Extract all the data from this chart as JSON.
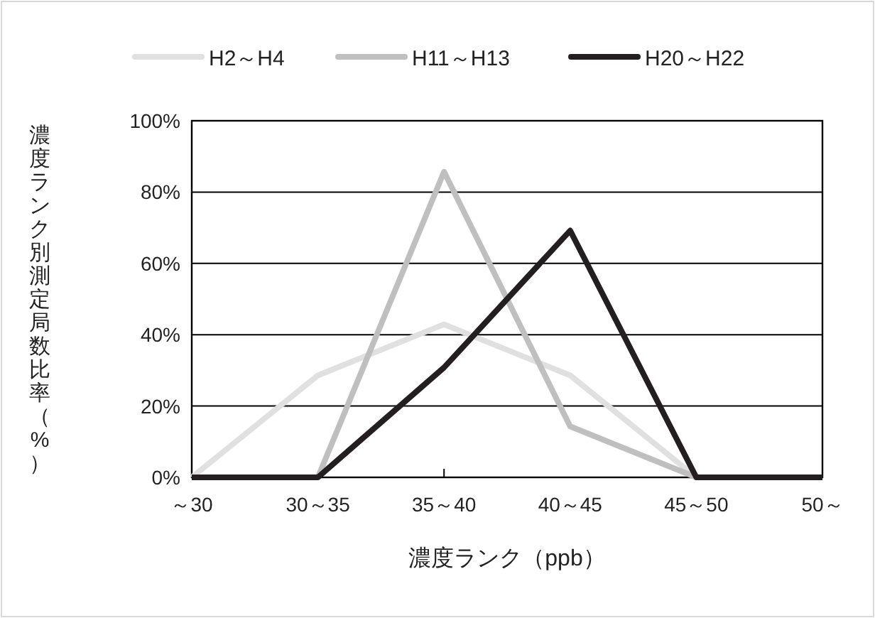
{
  "chart_data": {
    "type": "line",
    "xlabel": "濃度ランク（ppb）",
    "ylabel": "濃度ランク別測定局数比率（%）",
    "categories": [
      "～30",
      "30～35",
      "35～40",
      "40～45",
      "45～50",
      "50～"
    ],
    "series": [
      {
        "name": "H2～H4",
        "color": "#e0e0e0",
        "values": [
          0,
          28.6,
          42.9,
          28.6,
          0,
          0
        ]
      },
      {
        "name": "H11～H13",
        "color": "#bfbfbf",
        "values": [
          0,
          0,
          85.7,
          14.3,
          0,
          0
        ]
      },
      {
        "name": "H20～H22",
        "color": "#231f20",
        "values": [
          0,
          0,
          30.8,
          69.2,
          0,
          0
        ]
      }
    ],
    "ylim": [
      0,
      100
    ],
    "yticks": [
      {
        "value": 0,
        "label": "0%"
      },
      {
        "value": 20,
        "label": "20%"
      },
      {
        "value": 40,
        "label": "40%"
      },
      {
        "value": 60,
        "label": "60%"
      },
      {
        "value": 80,
        "label": "80%"
      },
      {
        "value": 100,
        "label": "100%"
      }
    ],
    "grid": "y",
    "legend": "top",
    "marker": "none",
    "line_style": "solid"
  }
}
